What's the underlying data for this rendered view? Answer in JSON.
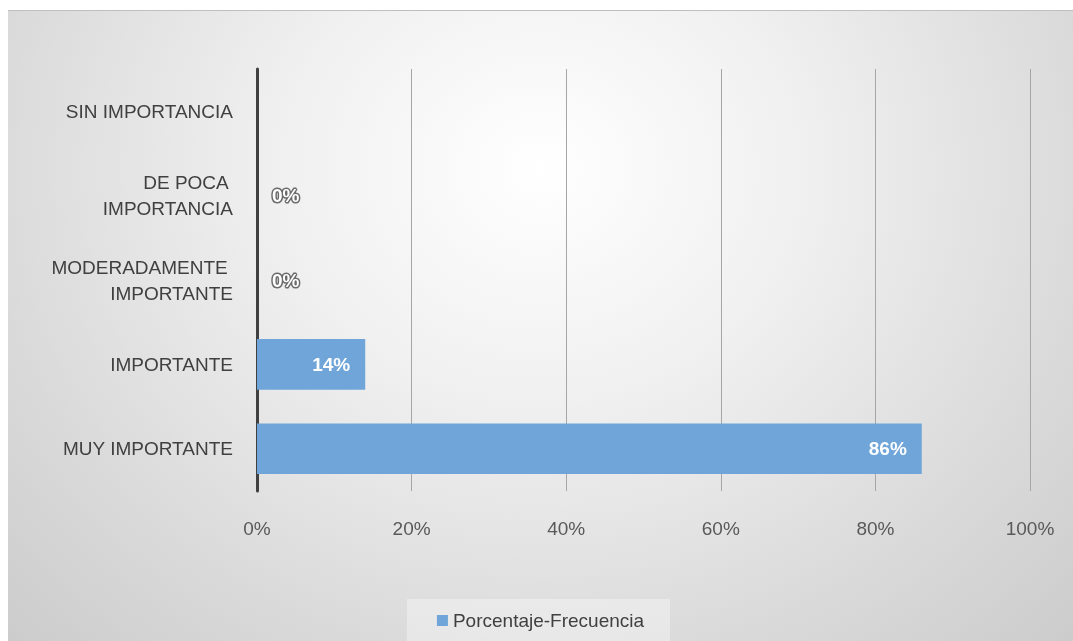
{
  "chart_data": {
    "type": "bar",
    "orientation": "horizontal",
    "categories": [
      "SIN IMPORTANCIA",
      "DE POCA IMPORTANCIA",
      "MODERADAMENTE IMPORTANTE",
      "IMPORTANTE",
      "MUY IMPORTANTE"
    ],
    "series": [
      {
        "name": "Porcentaje-Frecuencia",
        "color": "#6fa5d8",
        "values": [
          null,
          0,
          0,
          14,
          86
        ],
        "value_labels": [
          null,
          "0%",
          "0%",
          "14%",
          "86%"
        ]
      }
    ],
    "xlim": [
      0,
      100
    ],
    "xticks": [
      {
        "value": 0,
        "label": "0%"
      },
      {
        "value": 20,
        "label": "20%"
      },
      {
        "value": 40,
        "label": "40%"
      },
      {
        "value": 60,
        "label": "60%"
      },
      {
        "value": 80,
        "label": "80%"
      },
      {
        "value": 100,
        "label": "100%"
      }
    ],
    "grid": "x",
    "legend": "bottom"
  }
}
